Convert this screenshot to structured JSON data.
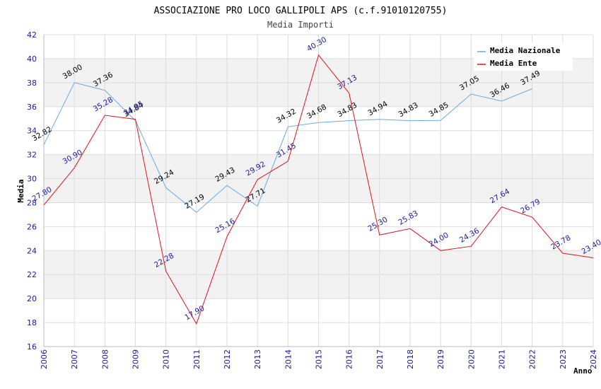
{
  "chart_data": {
    "type": "line",
    "title": "ASSOCIAZIONE PRO LOCO GALLIPOLI APS (c.f.91010120755)",
    "subtitle": "Media Importi",
    "xlabel": "Anno",
    "ylabel": "Media",
    "ylim": [
      16,
      42
    ],
    "yticks": [
      "16",
      "18",
      "20",
      "22",
      "24",
      "26",
      "28",
      "30",
      "32",
      "34",
      "36",
      "38",
      "40",
      "42"
    ],
    "categories": [
      "2006",
      "2007",
      "2008",
      "2009",
      "2010",
      "2011",
      "2012",
      "2013",
      "2014",
      "2015",
      "2016",
      "2017",
      "2018",
      "2019",
      "2020",
      "2021",
      "2022",
      "2023",
      "2024"
    ],
    "legend_position": "top-right",
    "series": [
      {
        "name": "Media Nazionale",
        "color": "#6aa8e0",
        "values": [
          32.82,
          38.0,
          37.36,
          34.84,
          29.24,
          27.19,
          29.43,
          27.71,
          34.32,
          34.68,
          34.83,
          34.94,
          34.83,
          34.85,
          37.05,
          36.46,
          37.49,
          null,
          null
        ],
        "labels": [
          "32.82",
          "38.00",
          "37.36",
          "34.84",
          "29.24",
          "27.19",
          "29.43",
          "27.71",
          "34.32",
          "34.68",
          "34.83",
          "34.94",
          "34.83",
          "34.85",
          "37.05",
          "36.46",
          "37.49",
          "",
          ""
        ]
      },
      {
        "name": "Media Ente",
        "color": "#e0141e",
        "values": [
          27.8,
          30.9,
          35.28,
          34.95,
          22.28,
          17.9,
          25.16,
          29.92,
          31.45,
          40.3,
          37.13,
          25.3,
          25.83,
          24.0,
          24.36,
          27.64,
          26.79,
          23.78,
          23.4
        ],
        "labels": [
          "27.80",
          "30.90",
          "35.28",
          "34.95",
          "22.28",
          "17.90",
          "25.16",
          "29.92",
          "31.45",
          "40.30",
          "37.13",
          "25.30",
          "25.83",
          "24.00",
          "24.36",
          "27.64",
          "26.79",
          "23.78",
          "23.40"
        ]
      }
    ]
  }
}
